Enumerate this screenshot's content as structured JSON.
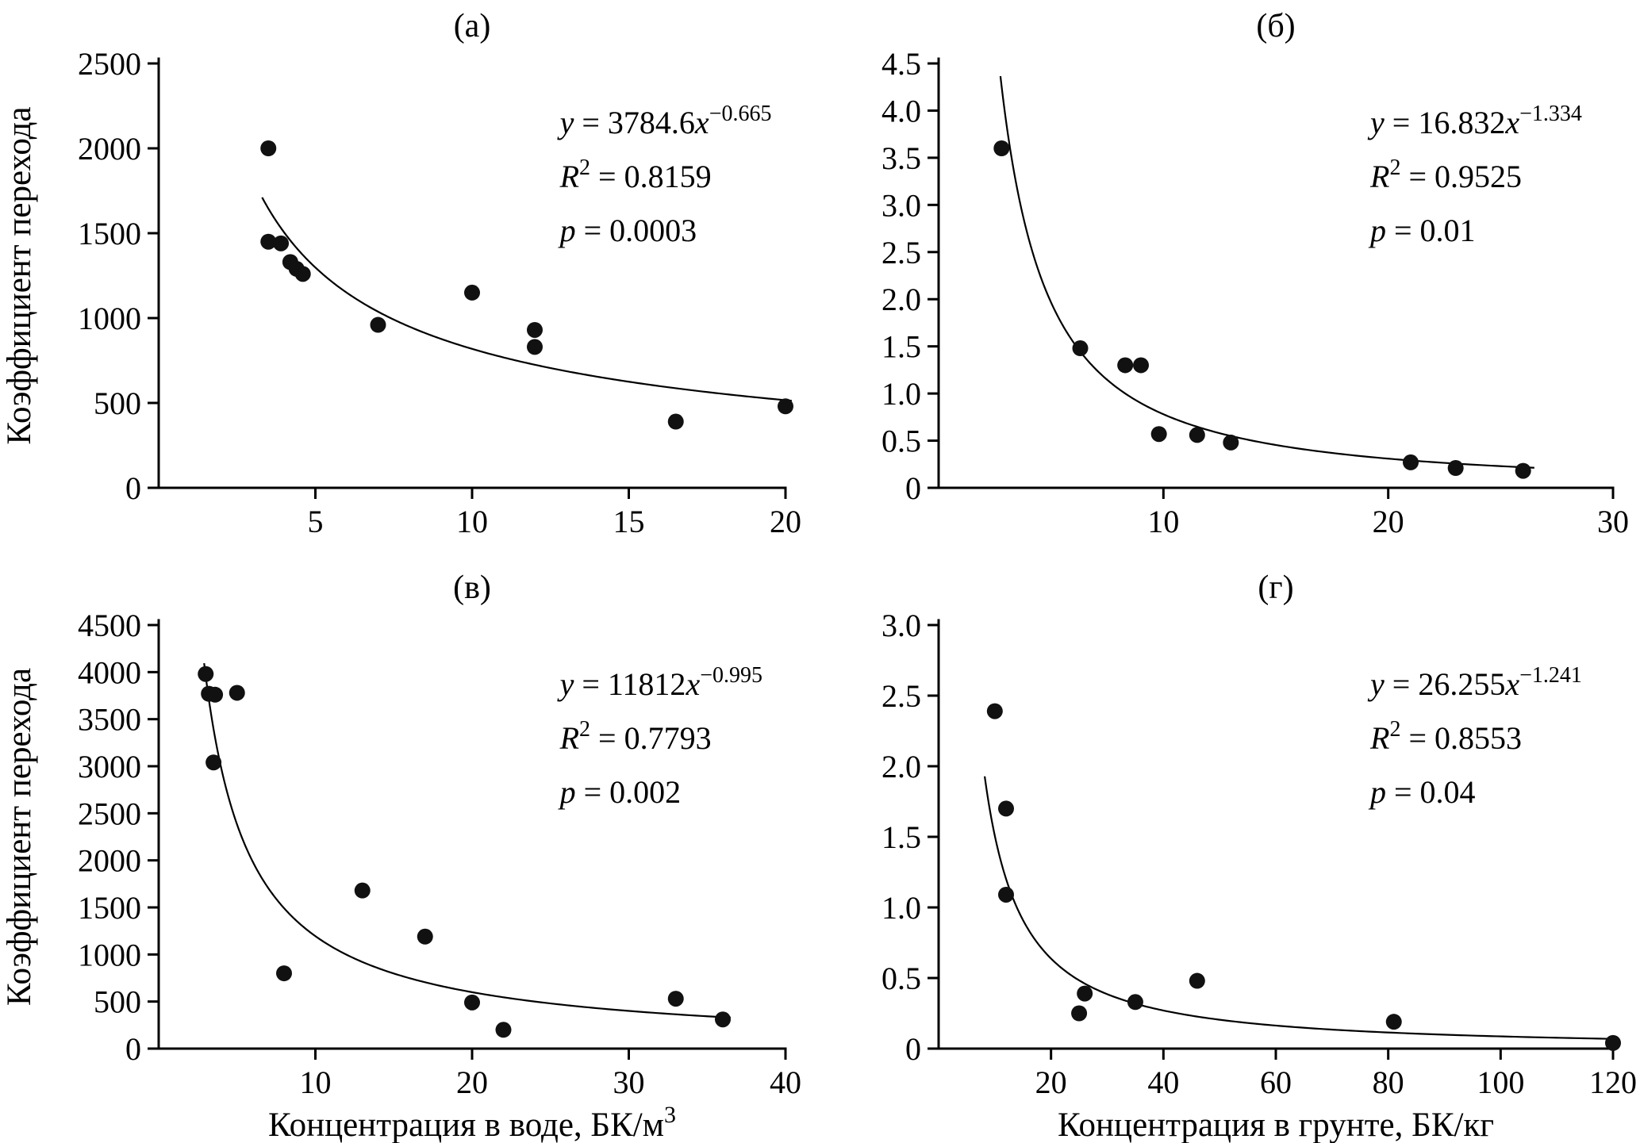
{
  "page": {
    "background": "#ffffff",
    "colors": {
      "axis": "#000000",
      "points": "#111111",
      "curve": "#000000",
      "text": "#000000"
    }
  },
  "chart_data": [
    {
      "id": "a",
      "type": "scatter",
      "title": "(а)",
      "ylabel": "Коэффициент перехода",
      "xlabel": "",
      "xlabel_sup": "",
      "equation": {
        "coef": "3784.6",
        "exponent": "−0.665",
        "r2": "0.8159",
        "p": "0.0003"
      },
      "fit": {
        "a": 3784.6,
        "b": -0.665,
        "x_start": 3.3,
        "x_end": 20.2
      },
      "xlim": [
        0,
        20
      ],
      "ylim": [
        0,
        2500
      ],
      "xticks": {
        "values": [
          5,
          10,
          15,
          20
        ],
        "labels": [
          "5",
          "10",
          "15",
          "20"
        ]
      },
      "yticks": {
        "values": [
          0,
          500,
          1000,
          1500,
          2000,
          2500
        ],
        "labels": [
          "0",
          "500",
          "1000",
          "1500",
          "2000",
          "2500"
        ]
      },
      "points": [
        [
          3.5,
          2000
        ],
        [
          3.5,
          1450
        ],
        [
          3.9,
          1440
        ],
        [
          4.2,
          1330
        ],
        [
          4.4,
          1290
        ],
        [
          4.6,
          1260
        ],
        [
          7,
          960
        ],
        [
          10,
          1150
        ],
        [
          12,
          930
        ],
        [
          12,
          830
        ],
        [
          16.5,
          390
        ],
        [
          20,
          480
        ]
      ],
      "grid": false,
      "legend": null
    },
    {
      "id": "b",
      "type": "scatter",
      "title": "(б)",
      "ylabel": "",
      "xlabel": "",
      "xlabel_sup": "",
      "equation": {
        "coef": "16.832",
        "exponent": "−1.334",
        "r2": "0.9525",
        "p": "0.01"
      },
      "fit": {
        "a": 16.832,
        "b": -1.334,
        "x_start": 2.75,
        "x_end": 26.5
      },
      "xlim": [
        0,
        30
      ],
      "ylim": [
        0,
        4.5
      ],
      "xticks": {
        "values": [
          10,
          20,
          30
        ],
        "labels": [
          "10",
          "20",
          "30"
        ]
      },
      "yticks": {
        "values": [
          0,
          0.5,
          1.0,
          1.5,
          2.0,
          2.5,
          3.0,
          3.5,
          4.0,
          4.5
        ],
        "labels": [
          "0",
          "0.5",
          "1.0",
          "1.5",
          "2.0",
          "2.5",
          "3.0",
          "3.5",
          "4.0",
          "4.5"
        ]
      },
      "points": [
        [
          2.8,
          3.6
        ],
        [
          6.3,
          1.48
        ],
        [
          8.3,
          1.3
        ],
        [
          9.0,
          1.3
        ],
        [
          9.8,
          0.57
        ],
        [
          11.5,
          0.56
        ],
        [
          13,
          0.48
        ],
        [
          21,
          0.27
        ],
        [
          23,
          0.21
        ],
        [
          26,
          0.18
        ]
      ],
      "grid": false,
      "legend": null
    },
    {
      "id": "v",
      "type": "scatter",
      "title": "(в)",
      "ylabel": "Коэффициент перехода",
      "xlabel": "Концентрация в воде, БК/м",
      "xlabel_sup": "3",
      "equation": {
        "coef": "11812",
        "exponent": "−0.995",
        "r2": "0.7793",
        "p": "0.002"
      },
      "fit": {
        "a": 11812,
        "b": -0.995,
        "x_start": 2.9,
        "x_end": 36.5
      },
      "xlim": [
        0,
        40
      ],
      "ylim": [
        0,
        4500
      ],
      "xticks": {
        "values": [
          10,
          20,
          30,
          40
        ],
        "labels": [
          "10",
          "20",
          "30",
          "40"
        ]
      },
      "yticks": {
        "values": [
          0,
          500,
          1000,
          1500,
          2000,
          2500,
          3000,
          3500,
          4000,
          4500
        ],
        "labels": [
          "0",
          "500",
          "1000",
          "1500",
          "2000",
          "2500",
          "3000",
          "3500",
          "4000",
          "4500"
        ]
      },
      "points": [
        [
          3,
          3980
        ],
        [
          3.2,
          3770
        ],
        [
          3.6,
          3760
        ],
        [
          5,
          3780
        ],
        [
          3.5,
          3040
        ],
        [
          8,
          800
        ],
        [
          13,
          1680
        ],
        [
          17,
          1190
        ],
        [
          20,
          490
        ],
        [
          22,
          200
        ],
        [
          33,
          530
        ],
        [
          36,
          310
        ]
      ],
      "grid": false,
      "legend": null
    },
    {
      "id": "g",
      "type": "scatter",
      "title": "(г)",
      "ylabel": "",
      "xlabel": "Концентрация в грунте, БК/кг",
      "xlabel_sup": "",
      "equation": {
        "coef": "26.255",
        "exponent": "−1.241",
        "r2": "0.8553",
        "p": "0.04"
      },
      "fit": {
        "a": 26.255,
        "b": -1.241,
        "x_start": 8.2,
        "x_end": 120
      },
      "xlim": [
        0,
        120
      ],
      "ylim": [
        0,
        3.0
      ],
      "xticks": {
        "values": [
          20,
          40,
          60,
          80,
          100,
          120
        ],
        "labels": [
          "20",
          "40",
          "60",
          "80",
          "100",
          "120"
        ]
      },
      "yticks": {
        "values": [
          0,
          0.5,
          1.0,
          1.5,
          2.0,
          2.5,
          3.0
        ],
        "labels": [
          "0",
          "0.5",
          "1.0",
          "1.5",
          "2.0",
          "2.5",
          "3.0"
        ]
      },
      "points": [
        [
          10,
          2.39
        ],
        [
          12,
          1.7
        ],
        [
          12,
          1.09
        ],
        [
          25,
          0.25
        ],
        [
          26,
          0.39
        ],
        [
          35,
          0.33
        ],
        [
          46,
          0.48
        ],
        [
          81,
          0.19
        ],
        [
          120,
          0.04
        ]
      ],
      "grid": false,
      "legend": null
    }
  ]
}
